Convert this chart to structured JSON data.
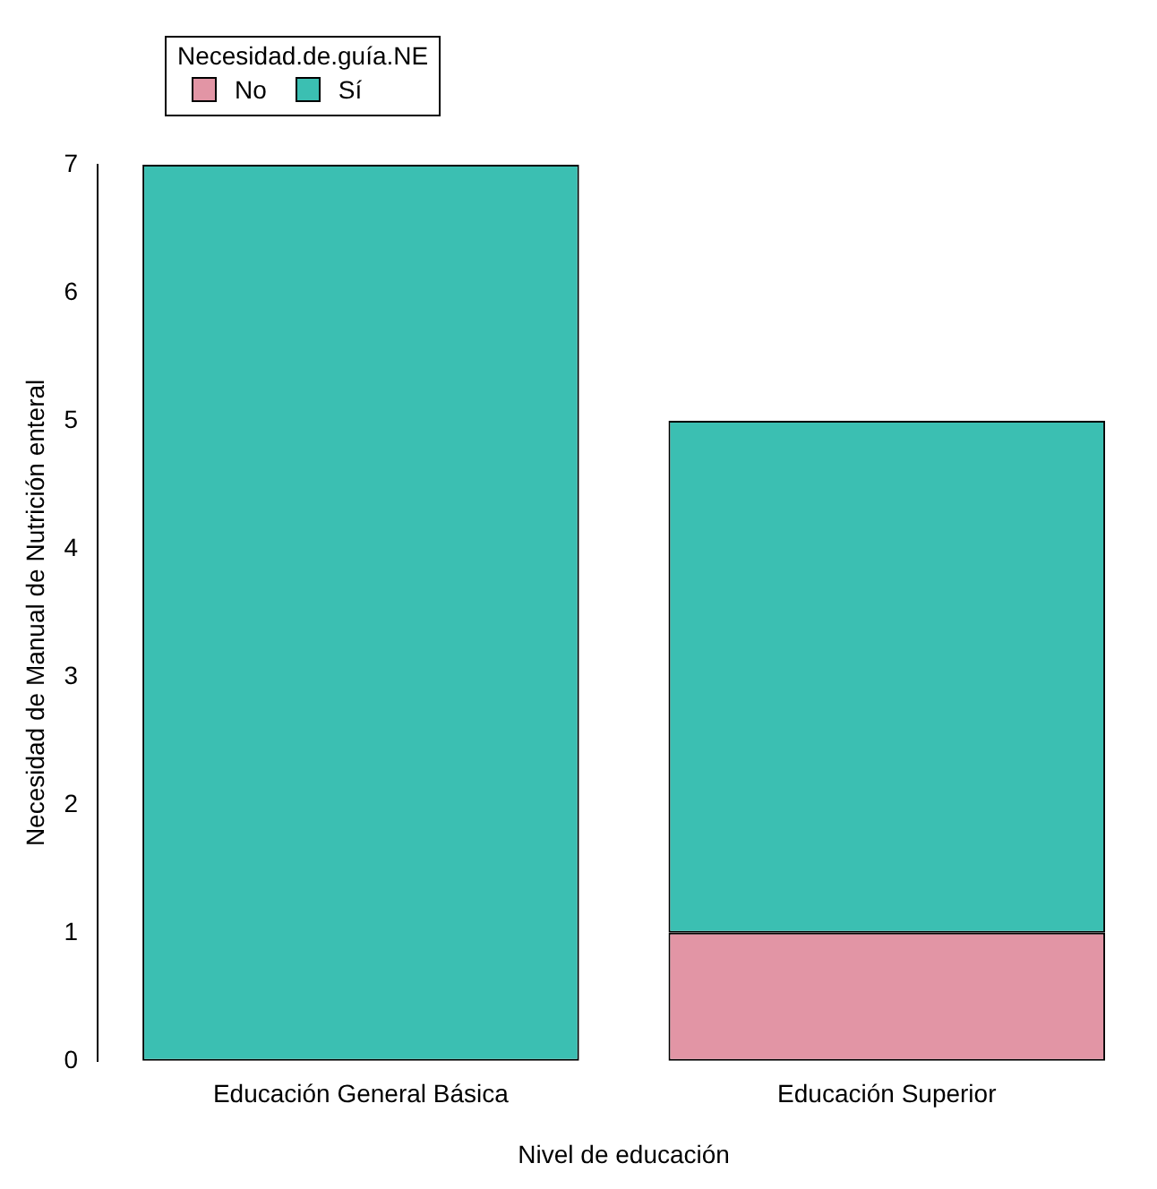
{
  "chart_data": {
    "type": "bar",
    "stacked": true,
    "xlabel": "Nivel de educación",
    "ylabel": "Necesidad de Manual de Nutrición enteral",
    "legend_title": "Necesidad.de.guía.NE",
    "legend": "top left",
    "grid": false,
    "categories": [
      "Educación General Básica",
      "Educación Superior"
    ],
    "series": [
      {
        "name": "No",
        "color": "#e295a5",
        "values": [
          0,
          1
        ]
      },
      {
        "name": "Sí",
        "color": "#3bbfb2",
        "values": [
          7,
          4
        ]
      }
    ],
    "ylim": [
      0,
      7
    ],
    "yticks": [
      0,
      1,
      2,
      3,
      4,
      5,
      6,
      7
    ]
  }
}
